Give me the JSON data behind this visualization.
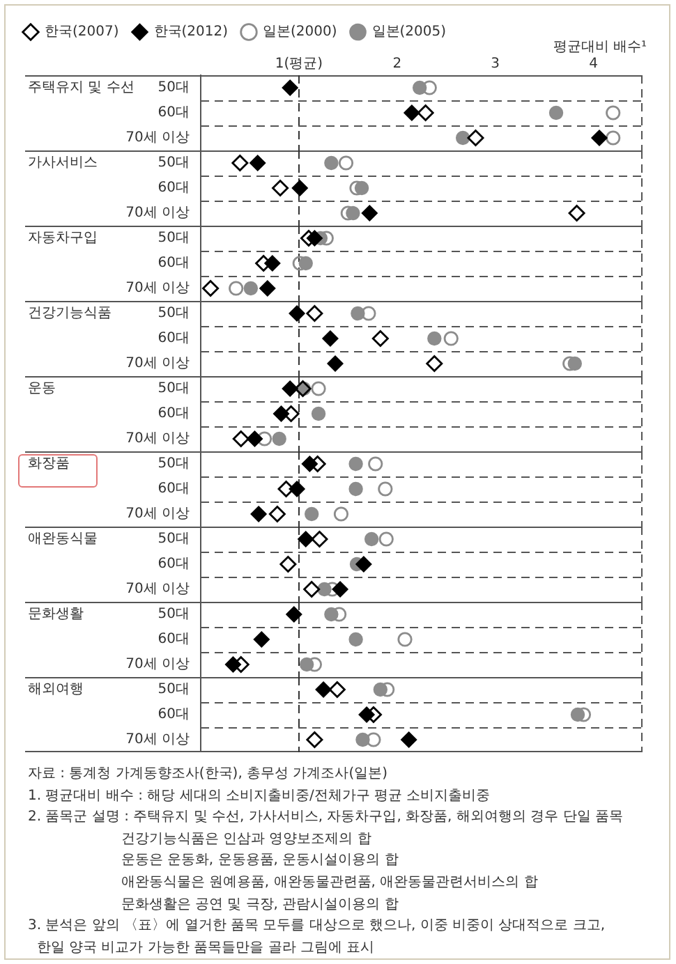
{
  "chart_data": [
    {
      "type": "scatter",
      "orientation": "horizontal",
      "title": "주택유지 및 수선",
      "categories": [
        "50대",
        "60대",
        "70세 이상"
      ],
      "series": [
        {
          "name": "한국(2007)",
          "color": "#000000",
          "marker": "diamond-open",
          "values": [
            null,
            2.29,
            2.8
          ]
        },
        {
          "name": "한국(2012)",
          "color": "#000000",
          "marker": "diamond",
          "values": [
            0.91,
            2.15,
            4.06
          ]
        },
        {
          "name": "일본(2000)",
          "color": "#8c8c8c",
          "marker": "circle-open",
          "values": [
            2.33,
            4.2,
            4.2
          ]
        },
        {
          "name": "일본(2005)",
          "color": "#8c8c8c",
          "marker": "circle",
          "values": [
            2.23,
            3.62,
            2.67
          ]
        }
      ],
      "xlim": [
        0,
        4.5
      ],
      "xticks": [
        {
          "value": 1,
          "label": "1(평균)"
        },
        2,
        3,
        4
      ],
      "xlabel": "평균대비 배수¹",
      "ref_lines": [
        {
          "axis": "x",
          "value": 1
        }
      ],
      "grid": "y",
      "legend": "top left"
    },
    {
      "type": "scatter",
      "orientation": "horizontal",
      "title": "가사서비스",
      "categories": [
        "50대",
        "60대",
        "70세 이상"
      ],
      "series": [
        {
          "color": "#000000",
          "marker": "diamond-open",
          "values": [
            0.4,
            0.81,
            3.83
          ]
        },
        {
          "color": "#000000",
          "marker": "diamond",
          "values": [
            0.58,
            1.01,
            1.72
          ]
        },
        {
          "color": "#8c8c8c",
          "marker": "circle-open",
          "values": [
            1.48,
            1.59,
            1.5
          ]
        },
        {
          "color": "#8c8c8c",
          "marker": "circle",
          "values": [
            1.33,
            1.64,
            1.55
          ]
        }
      ],
      "xlim": [
        0,
        4.5
      ],
      "ref_lines": [
        {
          "axis": "x",
          "value": 1
        }
      ],
      "grid": "y",
      "tick_labels": "y"
    },
    {
      "type": "scatter",
      "orientation": "horizontal",
      "title": "자동차구입",
      "categories": [
        "50대",
        "60대",
        "70세 이상"
      ],
      "series": [
        {
          "color": "#000000",
          "marker": "diamond-open",
          "values": [
            1.1,
            0.64,
            0.1
          ]
        },
        {
          "color": "#000000",
          "marker": "diamond",
          "values": [
            1.16,
            0.73,
            0.68
          ]
        },
        {
          "color": "#8c8c8c",
          "marker": "circle-open",
          "values": [
            1.28,
            1.01,
            0.36
          ]
        },
        {
          "color": "#8c8c8c",
          "marker": "circle",
          "values": [
            1.22,
            1.07,
            0.51
          ]
        }
      ],
      "xlim": [
        0,
        4.5
      ],
      "ref_lines": [
        {
          "axis": "x",
          "value": 1
        }
      ],
      "grid": "y",
      "tick_labels": "y"
    },
    {
      "type": "scatter",
      "orientation": "horizontal",
      "title": "건강기능식품",
      "categories": [
        "50대",
        "60대",
        "70세 이상"
      ],
      "series": [
        {
          "color": "#000000",
          "marker": "diamond-open",
          "values": [
            1.16,
            1.83,
            2.38
          ]
        },
        {
          "color": "#000000",
          "marker": "diamond",
          "values": [
            0.98,
            1.32,
            1.37
          ]
        },
        {
          "color": "#8c8c8c",
          "marker": "circle-open",
          "values": [
            1.71,
            2.55,
            3.76
          ]
        },
        {
          "color": "#8c8c8c",
          "marker": "circle",
          "values": [
            1.6,
            2.38,
            3.81
          ]
        }
      ],
      "xlim": [
        0,
        4.5
      ],
      "ref_lines": [
        {
          "axis": "x",
          "value": 1
        }
      ],
      "grid": "y",
      "tick_labels": "y"
    },
    {
      "type": "scatter",
      "orientation": "horizontal",
      "title": "운동",
      "categories": [
        "50대",
        "60대",
        "70세 이상"
      ],
      "series": [
        {
          "color": "#000000",
          "marker": "diamond-open",
          "values": [
            1.04,
            0.92,
            0.41
          ]
        },
        {
          "color": "#000000",
          "marker": "diamond",
          "values": [
            0.91,
            0.82,
            0.55
          ]
        },
        {
          "color": "#8c8c8c",
          "marker": "circle-open",
          "values": [
            1.2,
            null,
            0.65
          ]
        },
        {
          "color": "#8c8c8c",
          "marker": "circle",
          "values": [
            1.05,
            1.2,
            0.8
          ]
        }
      ],
      "xlim": [
        0,
        4.5
      ],
      "ref_lines": [
        {
          "axis": "x",
          "value": 1
        }
      ],
      "grid": "y",
      "tick_labels": "y"
    },
    {
      "type": "scatter",
      "orientation": "horizontal",
      "title": "화장품",
      "categories": [
        "50대",
        "60대",
        "70세 이상"
      ],
      "series": [
        {
          "color": "#000000",
          "marker": "diamond-open",
          "values": [
            1.19,
            0.87,
            0.78
          ]
        },
        {
          "color": "#000000",
          "marker": "diamond",
          "values": [
            1.11,
            0.98,
            0.59
          ]
        },
        {
          "color": "#8c8c8c",
          "marker": "circle-open",
          "values": [
            1.78,
            1.88,
            1.43
          ]
        },
        {
          "color": "#8c8c8c",
          "marker": "circle",
          "values": [
            1.58,
            1.58,
            1.13
          ]
        }
      ],
      "xlim": [
        0,
        4.5
      ],
      "ref_lines": [
        {
          "axis": "x",
          "value": 1
        }
      ],
      "grid": "y",
      "tick_labels": "y"
    },
    {
      "type": "scatter",
      "orientation": "horizontal",
      "title": "애완동식물",
      "categories": [
        "50대",
        "60대",
        "70세 이상"
      ],
      "series": [
        {
          "color": "#000000",
          "marker": "diamond-open",
          "values": [
            1.21,
            0.89,
            1.13
          ]
        },
        {
          "color": "#000000",
          "marker": "diamond",
          "values": [
            1.07,
            1.66,
            1.42
          ]
        },
        {
          "color": "#8c8c8c",
          "marker": "circle-open",
          "values": [
            1.89,
            null,
            1.34
          ]
        },
        {
          "color": "#8c8c8c",
          "marker": "circle",
          "values": [
            1.74,
            1.59,
            1.26
          ]
        }
      ],
      "xlim": [
        0,
        4.5
      ],
      "ref_lines": [
        {
          "axis": "x",
          "value": 1
        }
      ],
      "grid": "y",
      "tick_labels": "y"
    },
    {
      "type": "scatter",
      "orientation": "horizontal",
      "title": "문화생활",
      "categories": [
        "50대",
        "60대",
        "70세 이상"
      ],
      "series": [
        {
          "color": "#000000",
          "marker": "diamond-open",
          "values": [
            null,
            null,
            0.41
          ]
        },
        {
          "color": "#000000",
          "marker": "diamond",
          "values": [
            0.95,
            0.62,
            0.33
          ]
        },
        {
          "color": "#8c8c8c",
          "marker": "circle-open",
          "values": [
            1.41,
            2.08,
            1.16
          ]
        },
        {
          "color": "#8c8c8c",
          "marker": "circle",
          "values": [
            1.33,
            1.58,
            1.08
          ]
        }
      ],
      "xlim": [
        0,
        4.5
      ],
      "ref_lines": [
        {
          "axis": "x",
          "value": 1
        }
      ],
      "grid": "y",
      "tick_labels": "y"
    },
    {
      "type": "scatter",
      "orientation": "horizontal",
      "title": "해외여행",
      "categories": [
        "50대",
        "60대",
        "70세 이상"
      ],
      "series": [
        {
          "color": "#000000",
          "marker": "diamond-open",
          "values": [
            1.39,
            1.76,
            1.16
          ]
        },
        {
          "color": "#000000",
          "marker": "diamond",
          "values": [
            1.25,
            1.69,
            2.12
          ]
        },
        {
          "color": "#8c8c8c",
          "marker": "circle-open",
          "values": [
            1.9,
            3.9,
            1.76
          ]
        },
        {
          "color": "#8c8c8c",
          "marker": "circle",
          "values": [
            1.83,
            3.84,
            1.65
          ]
        }
      ],
      "xlim": [
        0,
        4.5
      ],
      "ref_lines": [
        {
          "axis": "x",
          "value": 1
        }
      ],
      "grid": "y",
      "tick_labels": "y",
      "annotations": [
        "자료 : 통계청 가계동향조사(한국), 총무성 가계조사(일본)",
        "1. 평균대비 배수 : 해당 세대의 소비지출비중/전체가구 평균 소비지출비중",
        "2. 품목군 설명 : 주택유지 및 수선, 가사서비스, 자동차구입, 화장품, 해외여행의 경우 단일 품목",
        "                     건강기능식품은 인삼과 영양보조제의 합",
        "                     운동은 운동화, 운동용품, 운동시설이용의 합",
        "                     애완동식물은 원예용품, 애완동물관련품, 애완동물관련서비스의 합",
        "                     문화생활은 공연 및 극장, 관람시설이용의 합",
        "3. 분석은 앞의 〈표〉에 열거한 품목 모두를 대상으로 했으나, 이중 비중이 상대적으로 크고,",
        "  한일 양국 비교가 가능한 품목들만을 골라 그림에 표시"
      ]
    }
  ]
}
